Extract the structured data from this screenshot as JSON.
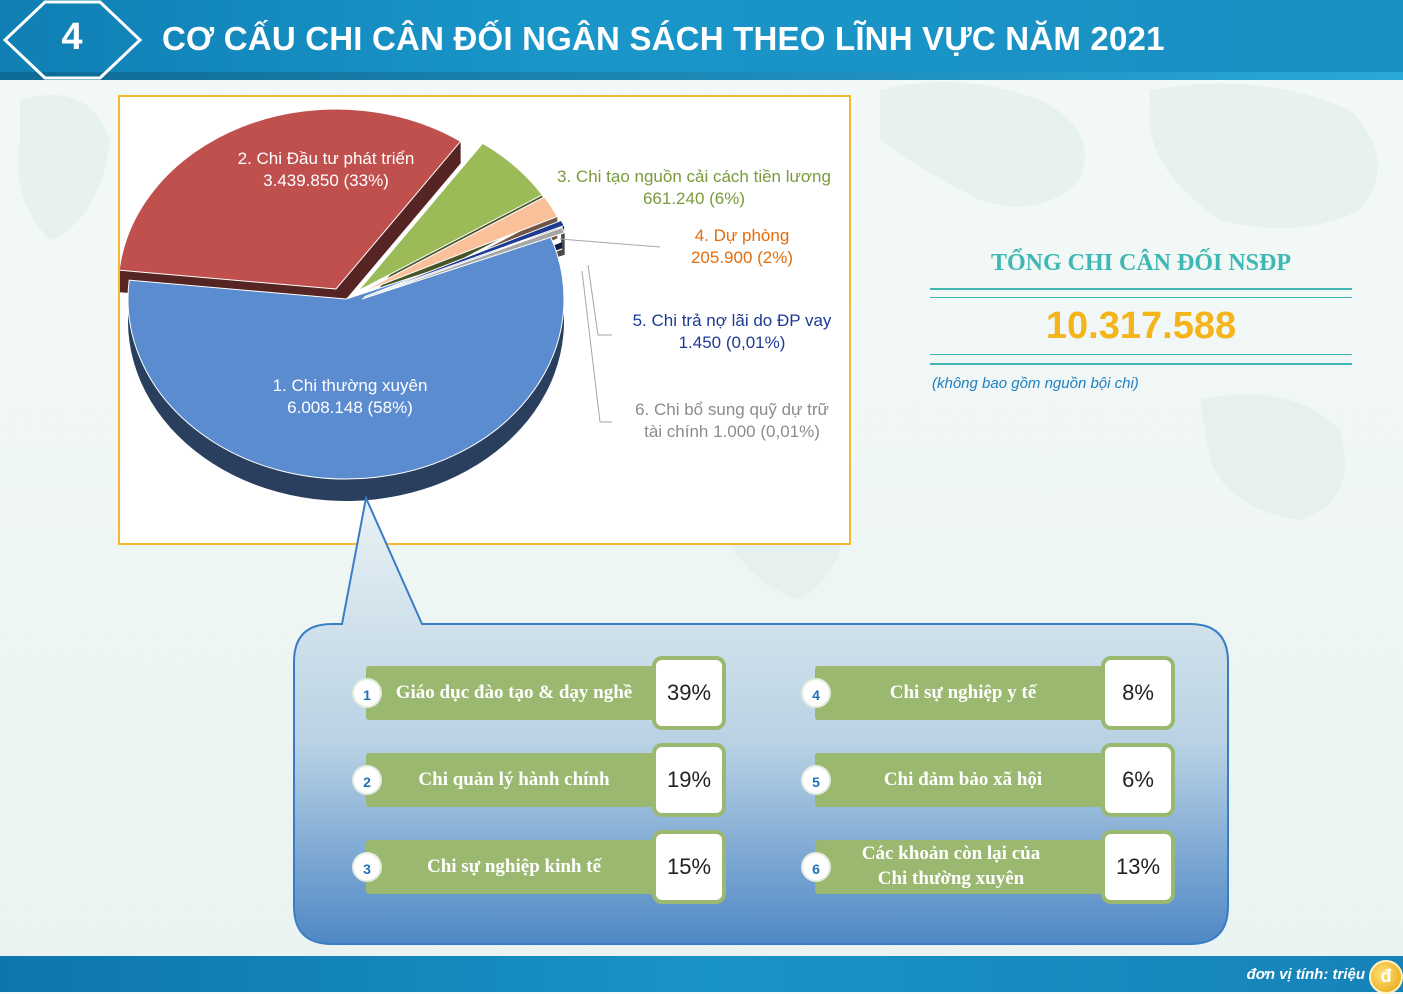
{
  "header": {
    "number": "4",
    "title": "CƠ CẤU CHI CÂN ĐỐI NGÂN SÁCH THEO LĨNH VỰC NĂM 2021"
  },
  "chart_data": {
    "type": "pie",
    "slices": [
      {
        "name": "1. Chi thường xuyên",
        "value_text": "6.008.148 (58%)",
        "value": 6008148,
        "percent": 58,
        "color": "#5b8ccf"
      },
      {
        "name": "2. Chi Đầu tư phát triển",
        "value_text": "3.439.850 (33%)",
        "value": 3439850,
        "percent": 33,
        "color": "#c0504d"
      },
      {
        "name": "3. Chi tạo nguồn cải cách tiền lương",
        "value_text": "661.240 (6%)",
        "value": 661240,
        "percent": 6,
        "color": "#9bbb59"
      },
      {
        "name": "4. Dự phòng",
        "value_text": "205.900 (2%)",
        "value": 205900,
        "percent": 2,
        "color": "#f9c09a"
      },
      {
        "name": "5. Chi trả nợ lãi do ĐP vay",
        "value_text": "1.450 (0,01%)",
        "value": 1450,
        "percent": 0.01,
        "color": "#1f3a93"
      },
      {
        "name": "6. Chi bổ sung quỹ dự trữ tài chính",
        "value_text": "1.000 (0,01%)",
        "value": 1000,
        "percent": 0.01,
        "color": "#a6a6a6"
      }
    ],
    "labels": {
      "s1_line1": "1. Chi thường xuyên",
      "s1_line2": "6.008.148 (58%)",
      "s2_line1": "2. Chi Đầu tư phát triển",
      "s2_line2": "3.439.850 (33%)",
      "s3_line1": "3. Chi tạo nguồn cải cách tiền lương",
      "s3_line2": "661.240 (6%)",
      "s4_line1": "4. Dự phòng",
      "s4_line2": "205.900 (2%)",
      "s5_line1": "5. Chi trả nợ lãi do ĐP vay",
      "s5_line2": "1.450 (0,01%)",
      "s6_line1": "6. Chi bổ sung quỹ dự trữ",
      "s6_line2": "tài chính  1.000 (0,01%)"
    },
    "label_colors": {
      "s1": "#ffffff",
      "s2": "#ffffff",
      "s3": "#7a9a3c",
      "s4": "#e46c0a",
      "s5": "#1f3a93",
      "s6": "#8c8c8c"
    }
  },
  "summary": {
    "title": "TỔNG CHI CÂN ĐỐI NSĐP",
    "value": "10.317.588",
    "note": "(không bao gồm nguồn bội chi)"
  },
  "breakdown": [
    {
      "num": "1",
      "label": "Giáo dục đào tạo & dạy nghề",
      "percent": "39%"
    },
    {
      "num": "2",
      "label": "Chi quản lý hành chính",
      "percent": "19%"
    },
    {
      "num": "3",
      "label": "Chi sự nghiệp kinh tế",
      "percent": "15%"
    },
    {
      "num": "4",
      "label": "Chi sự nghiệp y tế",
      "percent": "8%"
    },
    {
      "num": "5",
      "label": "Chi đảm bảo xã hội",
      "percent": "6%"
    },
    {
      "num": "6",
      "label": "Các khoản còn lại của Chi thường xuyên",
      "percent": "13%"
    }
  ],
  "footer": {
    "unit": "đơn vị tính: triệu",
    "coin_symbol": "đ"
  }
}
